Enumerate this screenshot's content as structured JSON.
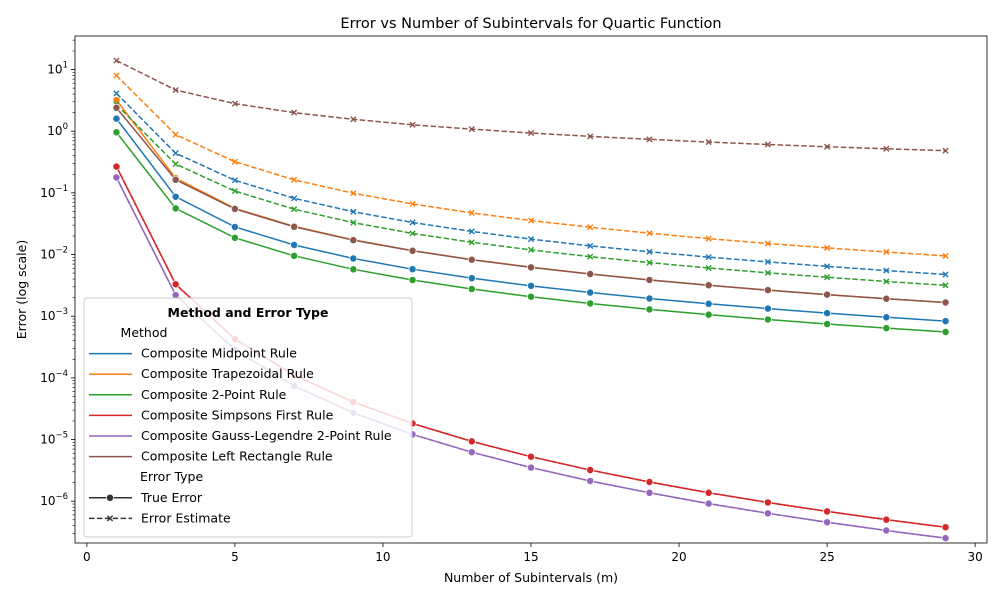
{
  "chart_data": {
    "type": "line",
    "title": "Error vs Number of Subintervals for Quartic Function",
    "xlabel": "Number of Subintervals (m)",
    "ylabel": "Error (log scale)",
    "xlim": [
      -0.4,
      30.4
    ],
    "ylim": [
      2.1e-07,
      35
    ],
    "y_scale": "log",
    "x_ticks": [
      0,
      5,
      10,
      15,
      20,
      25,
      30
    ],
    "y_ticks": [
      {
        "value": 1e-06,
        "base": "10",
        "exp": "−6"
      },
      {
        "value": 1e-05,
        "base": "10",
        "exp": "−5"
      },
      {
        "value": 0.0001,
        "base": "10",
        "exp": "−4"
      },
      {
        "value": 0.001,
        "base": "10",
        "exp": "−3"
      },
      {
        "value": 0.01,
        "base": "10",
        "exp": "−2"
      },
      {
        "value": 0.1,
        "base": "10",
        "exp": "−1"
      },
      {
        "value": 1,
        "base": "10",
        "exp": "0"
      },
      {
        "value": 10,
        "base": "10",
        "exp": "1"
      }
    ],
    "grid": false,
    "legend": {
      "title": "Method and Error Type",
      "placement": "lower-left",
      "method_header": "Method",
      "style_header": "Error Type",
      "styles": [
        {
          "name": "True Error",
          "marker": "circle",
          "dash": "solid"
        },
        {
          "name": "Error Estimate",
          "marker": "x",
          "dash": "dashed"
        }
      ]
    },
    "x": [
      1,
      3,
      5,
      7,
      9,
      11,
      13,
      15,
      17,
      19,
      21,
      23,
      25,
      27,
      29
    ],
    "series": [
      {
        "name": "Composite Midpoint Rule",
        "color": "#1f77b4",
        "true_error": [
          1.6,
          0.0867,
          0.028,
          0.0143,
          0.00864,
          0.00579,
          0.00414,
          0.00311,
          0.00242,
          0.00194,
          0.00159,
          0.00133,
          0.00112,
          0.000962,
          0.000833
        ],
        "error_estimate": [
          4.1,
          0.44,
          0.16,
          0.0816,
          0.0494,
          0.0331,
          0.0237,
          0.0178,
          0.0138,
          0.0111,
          0.00908,
          0.0076,
          0.00643,
          0.0055,
          0.00475
        ]
      },
      {
        "name": "Composite Trapezoidal Rule",
        "color": "#ff7f0e",
        "true_error": [
          3.2,
          0.173,
          0.056,
          0.0286,
          0.0173,
          0.0116,
          0.00828,
          0.00622,
          0.00484,
          0.00388,
          0.00318,
          0.00265,
          0.00224,
          0.00192,
          0.00167
        ],
        "error_estimate": [
          8.0,
          0.88,
          0.32,
          0.163,
          0.0988,
          0.0661,
          0.0473,
          0.0356,
          0.0277,
          0.0222,
          0.0181,
          0.0151,
          0.0128,
          0.011,
          0.0095
        ]
      },
      {
        "name": "Composite 2-Point Rule",
        "color": "#2ca02c",
        "true_error": [
          0.96,
          0.056,
          0.0187,
          0.00953,
          0.00576,
          0.00386,
          0.00276,
          0.00207,
          0.00161,
          0.00129,
          0.00106,
          0.000884,
          0.000747,
          0.000641,
          0.000555
        ],
        "error_estimate": [
          2.7,
          0.293,
          0.107,
          0.0544,
          0.0329,
          0.022,
          0.0158,
          0.0119,
          0.00923,
          0.0074,
          0.00605,
          0.00505,
          0.00428,
          0.00366,
          0.00317
        ]
      },
      {
        "name": "Composite Simpsons First Rule",
        "color": "#d62728",
        "true_error": [
          0.267,
          0.0033,
          0.000427,
          0.000111,
          4.06e-05,
          1.82e-05,
          9.34e-06,
          5.27e-06,
          3.2e-06,
          2.05e-06,
          1.37e-06,
          9.54e-07,
          6.83e-07,
          5.02e-07,
          3.78e-07
        ],
        "error_estimate": [
          0.267,
          0.0033,
          0.000427,
          0.000111,
          4.06e-05,
          1.82e-05,
          9.34e-06,
          5.27e-06,
          3.2e-06,
          2.05e-06,
          1.37e-06,
          9.54e-07,
          6.83e-07,
          5.02e-07,
          3.78e-07
        ]
      },
      {
        "name": "Composite Gauss-Legendre 2-Point Rule",
        "color": "#9467bd",
        "true_error": [
          0.178,
          0.0022,
          0.000285,
          7.41e-05,
          2.71e-05,
          1.21e-05,
          6.23e-06,
          3.51e-06,
          2.13e-06,
          1.37e-06,
          9.14e-07,
          6.36e-07,
          4.56e-07,
          3.35e-07,
          2.52e-07
        ],
        "error_estimate": [
          0.178,
          0.0022,
          0.000285,
          7.41e-05,
          2.71e-05,
          1.21e-05,
          6.23e-06,
          3.51e-06,
          2.13e-06,
          1.37e-06,
          9.14e-07,
          6.36e-07,
          4.56e-07,
          3.35e-07,
          2.52e-07
        ]
      },
      {
        "name": "Composite Left Rectangle Rule",
        "color": "#8c564b",
        "true_error": [
          2.4,
          0.163,
          0.055,
          0.0282,
          0.0171,
          0.0115,
          0.00823,
          0.0062,
          0.00483,
          0.00387,
          0.00318,
          0.00265,
          0.00224,
          0.00192,
          0.00167
        ],
        "error_estimate": [
          14.0,
          4.65,
          2.8,
          2.0,
          1.56,
          1.27,
          1.08,
          0.935,
          0.825,
          0.738,
          0.667,
          0.609,
          0.56,
          0.519,
          0.483
        ]
      }
    ]
  }
}
